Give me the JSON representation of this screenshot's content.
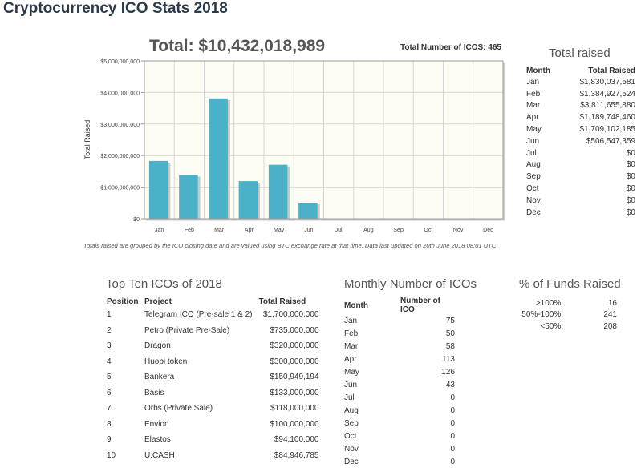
{
  "page": {
    "title": "Cryptocurrency ICO Stats 2018",
    "total_label": "Total: $10,432,018,989",
    "total_number_label": "Total Number of ICOS: 465",
    "chart_note": "Totals raised are grouped by the ICO closing date and are valued using BTC exchange rate at that time. Data last updated on 20th June 2018 08:01 UTC"
  },
  "chart_data": {
    "type": "bar",
    "categories": [
      "Jan",
      "Feb",
      "Mar",
      "Apr",
      "May",
      "Jun",
      "Jul",
      "Aug",
      "Sep",
      "Oct",
      "Nov",
      "Dec"
    ],
    "values": [
      1830037581,
      1384927524,
      3811655880,
      1189748460,
      1709102185,
      506547359,
      0,
      0,
      0,
      0,
      0,
      0
    ],
    "title": "",
    "xlabel": "",
    "ylabel": "Total Raised",
    "ylim": [
      0,
      5000000000
    ],
    "yticks": [
      0,
      1000000000,
      2000000000,
      3000000000,
      4000000000,
      5000000000
    ],
    "ytick_labels": [
      "$0",
      "$1,000,000,000",
      "$2,000,000,000",
      "$3,000,000,000",
      "$4,000,000,000",
      "$5,000,000,000"
    ],
    "grid": true,
    "bar_color": "#4bb1c8",
    "plot_bg": "#fefdf3"
  },
  "total_raised": {
    "title": "Total raised",
    "headers": {
      "month": "Month",
      "total": "Total Raised"
    },
    "rows": [
      {
        "month": "Jan",
        "total": "$1,830,037,581"
      },
      {
        "month": "Feb",
        "total": "$1,384,927,524"
      },
      {
        "month": "Mar",
        "total": "$3,811,655,880"
      },
      {
        "month": "Apr",
        "total": "$1,189,748,460"
      },
      {
        "month": "May",
        "total": "$1,709,102,185"
      },
      {
        "month": "Jun",
        "total": "$506,547,359"
      },
      {
        "month": "Jul",
        "total": "$0"
      },
      {
        "month": "Aug",
        "total": "$0"
      },
      {
        "month": "Sep",
        "total": "$0"
      },
      {
        "month": "Oct",
        "total": "$0"
      },
      {
        "month": "Nov",
        "total": "$0"
      },
      {
        "month": "Dec",
        "total": "$0"
      }
    ]
  },
  "top_ten": {
    "title": "Top Ten ICOs of 2018",
    "headers": {
      "position": "Position",
      "project": "Project",
      "total": "Total Raised"
    },
    "rows": [
      {
        "position": "1",
        "project": "Telegram ICO (Pre-sale 1 & 2)",
        "total": "$1,700,000,000"
      },
      {
        "position": "2",
        "project": "Petro (Private Pre-Sale)",
        "total": "$735,000,000"
      },
      {
        "position": "3",
        "project": "Dragon",
        "total": "$320,000,000"
      },
      {
        "position": "4",
        "project": "Huobi token",
        "total": "$300,000,000"
      },
      {
        "position": "5",
        "project": "Bankera",
        "total": "$150,949,194"
      },
      {
        "position": "6",
        "project": "Basis",
        "total": "$133,000,000"
      },
      {
        "position": "7",
        "project": "Orbs (Private Sale)",
        "total": "$118,000,000"
      },
      {
        "position": "8",
        "project": "Envion",
        "total": "$100,000,000"
      },
      {
        "position": "9",
        "project": "Elastos",
        "total": "$94,100,000"
      },
      {
        "position": "10",
        "project": "U.CASH",
        "total": "$84,946,785"
      }
    ]
  },
  "monthly_count": {
    "title": "Monthly Number of ICOs",
    "headers": {
      "month": "Month",
      "count": "Number of ICO"
    },
    "rows": [
      {
        "month": "Jan",
        "count": "75"
      },
      {
        "month": "Feb",
        "count": "50"
      },
      {
        "month": "Mar",
        "count": "58"
      },
      {
        "month": "Apr",
        "count": "113"
      },
      {
        "month": "May",
        "count": "126"
      },
      {
        "month": "Jun",
        "count": "43"
      },
      {
        "month": "Jul",
        "count": "0"
      },
      {
        "month": "Aug",
        "count": "0"
      },
      {
        "month": "Sep",
        "count": "0"
      },
      {
        "month": "Oct",
        "count": "0"
      },
      {
        "month": "Nov",
        "count": "0"
      },
      {
        "month": "Dec",
        "count": "0"
      }
    ]
  },
  "funds_raised": {
    "title": "% of Funds Raised",
    "rows": [
      {
        "label": ">100%:",
        "value": "16"
      },
      {
        "label": "50%-100%:",
        "value": "241"
      },
      {
        "label": "<50%:",
        "value": "208"
      }
    ]
  }
}
